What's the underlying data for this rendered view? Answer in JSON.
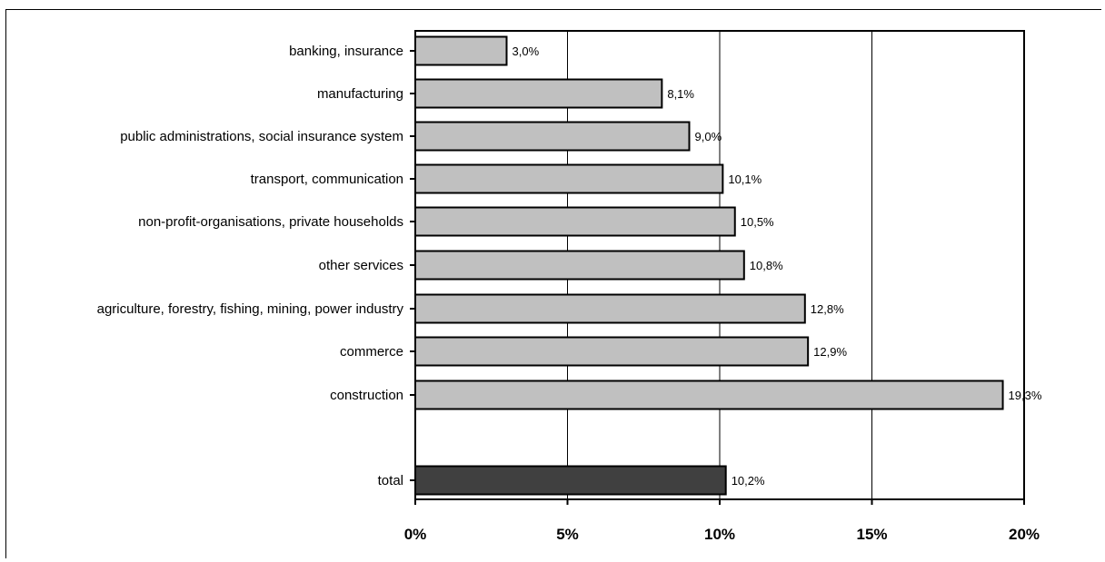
{
  "chart_data": {
    "type": "bar",
    "orientation": "horizontal",
    "title": "",
    "xlabel": "",
    "ylabel": "",
    "xlim": [
      0,
      20
    ],
    "ticks": [
      0,
      5,
      10,
      15,
      20
    ],
    "tick_labels": [
      "0%",
      "5%",
      "10%",
      "15%",
      "20%"
    ],
    "grid": true,
    "legend": "none",
    "colors": {
      "bar": "#c0c0c0",
      "total_bar": "#404040",
      "edge": "#000000"
    },
    "categories": [
      "banking, insurance",
      "manufacturing",
      "public administrations, social insurance system",
      "transport, communication",
      "non-profit-organisations, private households",
      "other services",
      "agriculture, forestry, fishing, mining, power industry",
      "commerce",
      "construction",
      "total"
    ],
    "values": [
      3.0,
      8.1,
      9.0,
      10.1,
      10.5,
      10.8,
      12.8,
      12.9,
      19.3,
      10.2
    ],
    "value_labels": [
      "3,0%",
      "8,1%",
      "9,0%",
      "10,1%",
      "10,5%",
      "10,8%",
      "12,8%",
      "12,9%",
      "19,3%",
      "10,2%"
    ]
  }
}
